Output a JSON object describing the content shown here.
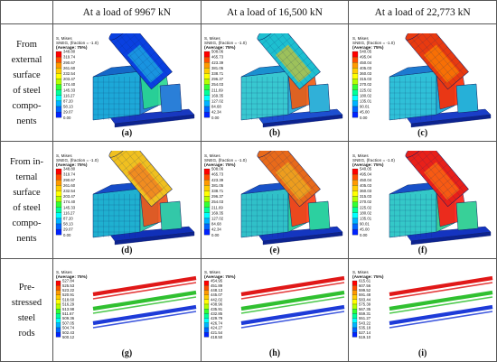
{
  "table": {
    "corner": "",
    "columns": [
      "At a load of 9967 kN",
      "At a load of 16,500 kN",
      "At a load of 22,773 kN"
    ],
    "rows": [
      {
        "label_lines": [
          "From",
          "external",
          "surface",
          "of steel",
          "compo-",
          "nents"
        ],
        "panels": [
          {
            "sub": "(a)",
            "legend": {
              "title": "S, Mises",
              "line2": "SNEG, (fraction = -1.0)",
              "line3": "(Average: 75%)",
              "values": [
                "348.80",
                "319.74",
                "290.67",
                "261.60",
                "232.54",
                "203.47",
                "174.40",
                "145.33",
                "116.27",
                "87.20",
                "58.13",
                "29.07",
                "0.00"
              ]
            }
          },
          {
            "sub": "(b)",
            "legend": {
              "title": "S, Mises",
              "line2": "SNEG, (fraction = -1.0)",
              "line3": "(Average: 75%)",
              "values": [
                "508.06",
                "465.73",
                "423.39",
                "381.05",
                "338.71",
                "296.37",
                "254.03",
                "211.69",
                "169.35",
                "127.02",
                "84.68",
                "42.34",
                "0.00"
              ]
            }
          },
          {
            "sub": "(c)",
            "legend": {
              "title": "S, Mises",
              "line2": "SNEG, (fraction = -1.0)",
              "line3": "(Average: 75%)",
              "values": [
                "540.05",
                "495.04",
                "450.04",
                "405.03",
                "360.03",
                "315.03",
                "270.02",
                "225.02",
                "180.02",
                "135.01",
                "90.01",
                "45.00",
                "0.00"
              ]
            }
          }
        ]
      },
      {
        "label_lines": [
          "From in-",
          "ternal",
          "surface",
          "of steel",
          "compo-",
          "nents"
        ],
        "panels": [
          {
            "sub": "(d)",
            "legend": {
              "title": "S, Mises",
              "line2": "SNEG, (fraction = -1.0)",
              "line3": "(Average: 75%)",
              "values": [
                "348.80",
                "319.74",
                "290.67",
                "261.60",
                "232.54",
                "203.47",
                "174.40",
                "145.33",
                "116.27",
                "87.20",
                "58.13",
                "29.07",
                "0.00"
              ]
            }
          },
          {
            "sub": "(e)",
            "legend": {
              "title": "S, Mises",
              "line2": "SNEG, (fraction = -1.0)",
              "line3": "(Average: 75%)",
              "values": [
                "508.06",
                "465.73",
                "423.39",
                "381.05",
                "338.71",
                "296.37",
                "254.03",
                "211.69",
                "169.35",
                "127.02",
                "84.68",
                "42.34",
                "0.00"
              ]
            }
          },
          {
            "sub": "(f)",
            "legend": {
              "title": "S, Mises",
              "line2": "SNEG, (fraction = -1.0)",
              "line3": "(Average: 75%)",
              "values": [
                "540.05",
                "495.04",
                "450.04",
                "405.03",
                "360.03",
                "315.03",
                "270.02",
                "225.02",
                "180.02",
                "135.01",
                "90.01",
                "45.00",
                "0.00"
              ]
            }
          }
        ]
      },
      {
        "label_lines": [
          "Pre-",
          "stressed",
          "steel",
          "rods"
        ],
        "panels": [
          {
            "sub": "(g)",
            "legend": {
              "title": "S, Mises",
              "line2": "",
              "line3": "(Average: 75%)",
              "values": [
                "527.84",
                "525.53",
                "523.22",
                "520.91",
                "518.60",
                "516.29",
                "513.98",
                "511.67",
                "509.36",
                "507.05",
                "504.74",
                "502.43",
                "500.12"
              ]
            }
          },
          {
            "sub": "(h)",
            "legend": {
              "title": "S, Mises",
              "line2": "",
              "line3": "(Average: 75%)",
              "values": [
                "454.95",
                "451.89",
                "448.13",
                "445.07",
                "442.02",
                "438.96",
                "435.91",
                "432.85",
                "429.79",
                "426.74",
                "424.27",
                "421.54",
                "418.50"
              ]
            }
          },
          {
            "sub": "(i)",
            "legend": {
              "title": "S, Mises",
              "line2": "",
              "line3": "(Average: 75%)",
              "values": [
                "615.61",
                "607.56",
                "599.52",
                "591.48",
                "583.44",
                "575.39",
                "567.35",
                "559.31",
                "551.27",
                "543.22",
                "535.18",
                "527.14",
                "519.10"
              ]
            }
          }
        ]
      }
    ]
  },
  "palette": [
    "#ff0000",
    "#ff4d00",
    "#ff9900",
    "#ffcc00",
    "#ffff00",
    "#b3ff00",
    "#33ff33",
    "#00ff99",
    "#00ffff",
    "#00b3ff",
    "#0066ff",
    "#0022ff",
    "#0000cc"
  ],
  "panel_colors": {
    "a": {
      "tube": "#0a40e0",
      "tubeHot": "#22c0e0",
      "box": "#1da8d8",
      "boxDark": "#1468c8",
      "plate": "#2a7fd8",
      "base": "#1838c0",
      "joint": "#28d890"
    },
    "b": {
      "tube": "#1dbfd0",
      "tubeHot": "#e2c21c",
      "box": "#38c8d0",
      "boxDark": "#1a90d0",
      "plate": "#30b0d8",
      "base": "#1d4fd0",
      "joint": "#f05a10"
    },
    "c": {
      "tube": "#e83a10",
      "tubeHot": "#ff8c00",
      "box": "#2fc0d8",
      "boxDark": "#1c7ad0",
      "plate": "#26b0d8",
      "base": "#1a3ec8",
      "joint": "#ff2a00"
    },
    "d": {
      "tube": "#f0c020",
      "tubeHot": "#f07020",
      "box": "#1fb0d0",
      "boxDark": "#164cc8",
      "plate": "#33c8a8",
      "base": "#1030b8",
      "joint": "#f05018"
    },
    "e": {
      "tube": "#e86a1a",
      "tubeHot": "#f0b820",
      "box": "#30c0c8",
      "boxDark": "#1852c8",
      "plate": "#2cd0a0",
      "base": "#1436c0",
      "joint": "#ff3a10"
    },
    "f": {
      "tube": "#e8201a",
      "tubeHot": "#ff7a10",
      "box": "#34c8c8",
      "boxDark": "#1850c8",
      "plate": "#38d098",
      "base": "#1434c0",
      "joint": "#ff1a10"
    }
  },
  "rod_colors": {
    "g": [
      "#e01818",
      "#30c030",
      "#1d3bd8"
    ],
    "h": [
      "#e01818",
      "#30c030",
      "#1d3bd8"
    ],
    "i": [
      "#e01818",
      "#30c030",
      "#1d3bd8"
    ]
  }
}
